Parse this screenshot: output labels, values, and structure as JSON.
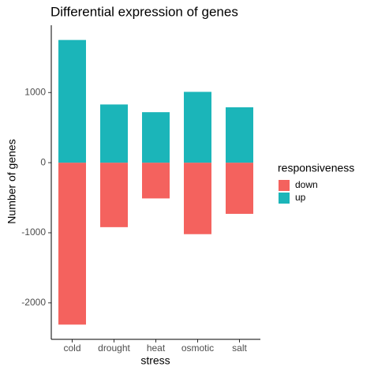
{
  "chart_data": {
    "type": "bar",
    "title": "Differential expression of genes",
    "x_label": "stress",
    "y_label": "Number of genes",
    "categories": [
      "cold",
      "drought",
      "heat",
      "osmotic",
      "salt"
    ],
    "series": [
      {
        "name": "down",
        "color": "#F4625E",
        "values": [
          -2310,
          -920,
          -510,
          -1020,
          -730
        ]
      },
      {
        "name": "up",
        "color": "#1BB5B9",
        "values": [
          1750,
          830,
          720,
          1010,
          790
        ]
      }
    ],
    "legend_title": "responsiveness",
    "legend_position": "right",
    "ylim": [
      -2520,
      1960
    ],
    "yticks": [
      -2000,
      -1000,
      0,
      1000
    ]
  }
}
